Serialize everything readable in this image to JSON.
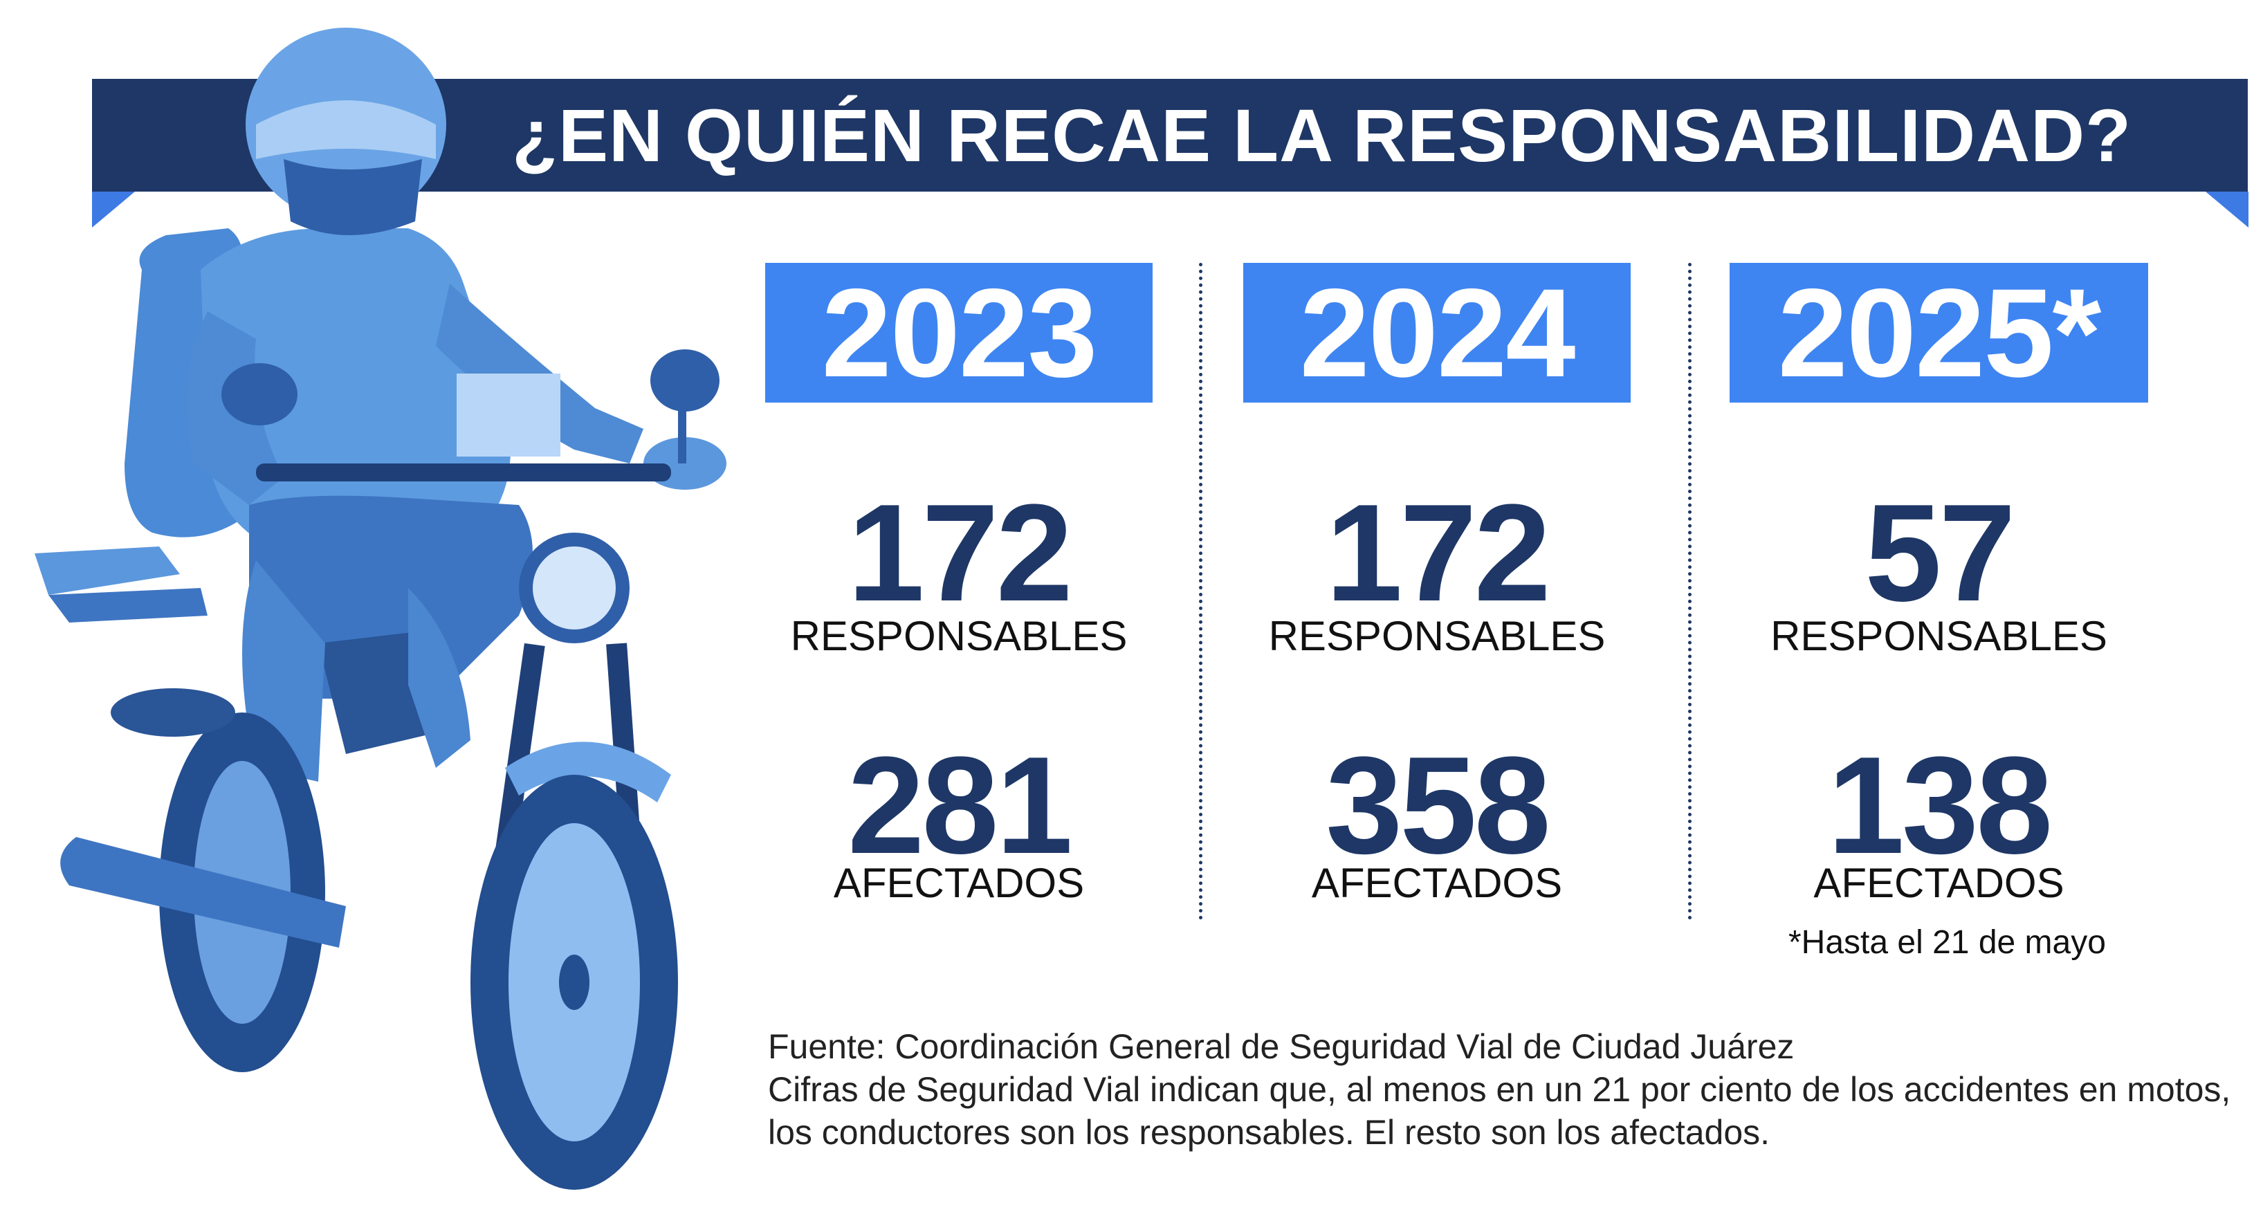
{
  "header": {
    "title": "¿EN QUIÉN RECAE LA RESPONSABILIDAD?"
  },
  "stats": [
    {
      "year": "2023",
      "responsables": "172",
      "responsables_label": "RESPONSABLES",
      "afectados": "281",
      "afectados_label": "AFECTADOS"
    },
    {
      "year": "2024",
      "responsables": "172",
      "responsables_label": "RESPONSABLES",
      "afectados": "358",
      "afectados_label": "AFECTADOS"
    },
    {
      "year": "2025*",
      "responsables": "57",
      "responsables_label": "RESPONSABLES",
      "afectados": "138",
      "afectados_label": "AFECTADOS"
    }
  ],
  "footnote": "*Hasta el 21 de mayo",
  "source": {
    "line1": "Fuente: Coordinación General de Seguridad Vial de Ciudad Juárez",
    "line2": "Cifras de Seguridad Vial indican que, al menos en un 21 por ciento de los accidentes en motos, los conductores son los responsables. El resto son los afectados."
  },
  "illustration": {
    "icon": "motorcyclist-photo",
    "color": "#3e85f2"
  },
  "colors": {
    "navy": "#1e3766",
    "accent_blue": "#3e85f2",
    "ribbon_blue": "#3e7ae4"
  }
}
